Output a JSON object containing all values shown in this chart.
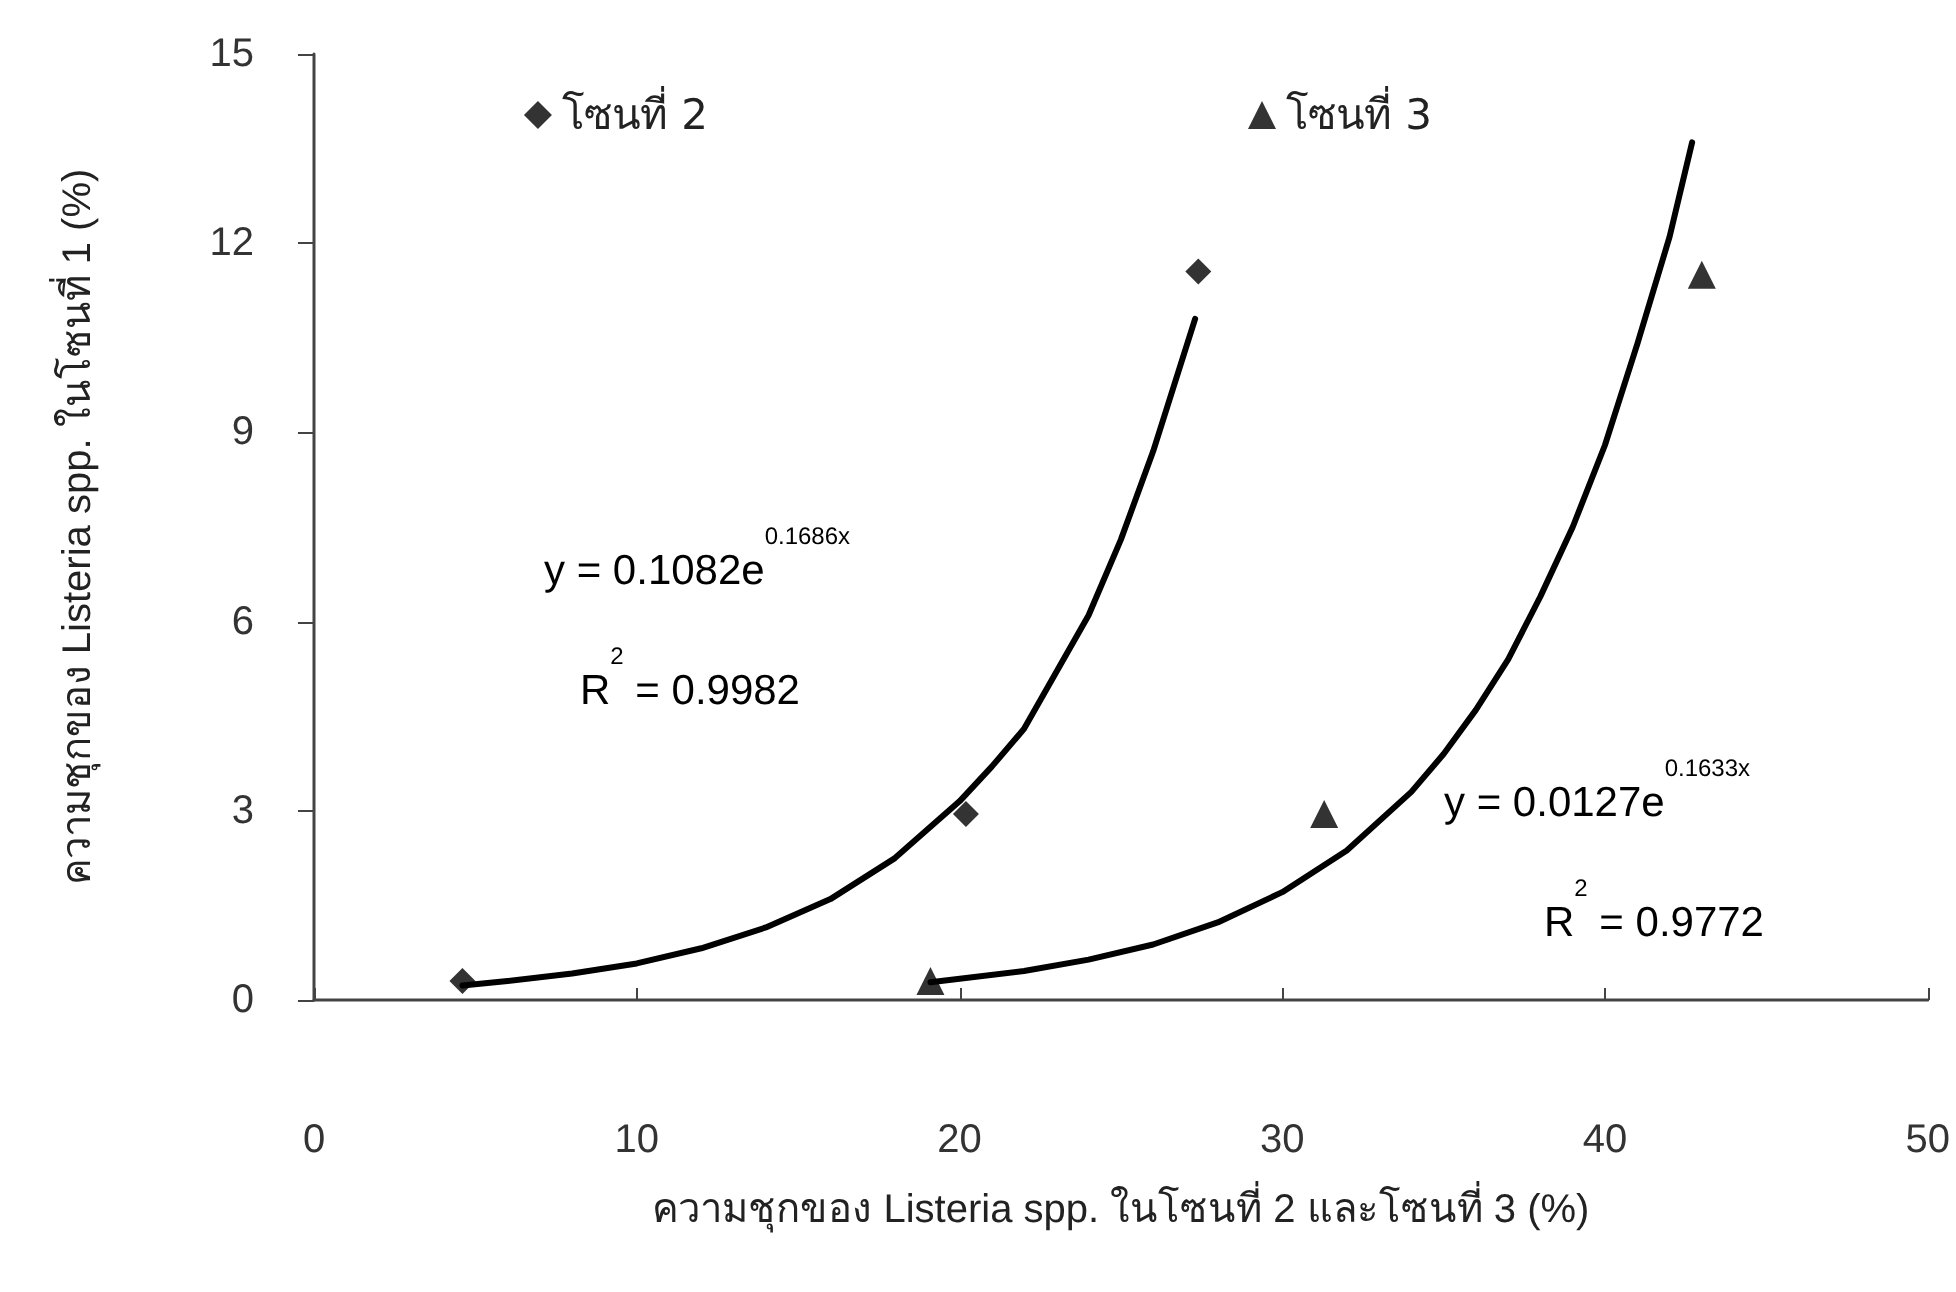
{
  "chart_data": {
    "type": "scatter",
    "xlabel": "ความชุกของ Listeria spp. ในโซนที่ 2 และโซนที่ 3 (%)",
    "ylabel": "ความชุกของ Listeria spp. ในโซนที่ 1 (%)",
    "xlim": [
      0,
      50
    ],
    "xticks": [
      0,
      10,
      20,
      30,
      40,
      50
    ],
    "ylim": [
      0,
      15
    ],
    "yticks": [
      0,
      3,
      6,
      9,
      12,
      15
    ],
    "grid": false,
    "legend": "top",
    "series": [
      {
        "name": "โซนที่ 2",
        "marker": "diamond",
        "color": "#000000",
        "x": [
          4.6,
          20.2,
          27.4
        ],
        "values": [
          0.3,
          2.95,
          11.55
        ]
      },
      {
        "name": "โซนที่ 3",
        "marker": "triangle",
        "color": "#000000",
        "x": [
          19.1,
          31.3,
          43
        ],
        "values": [
          0.3,
          2.95,
          11.5
        ]
      },
      {
        "type": "line",
        "marker": "none",
        "line_style": "solid",
        "color": "#000000",
        "x": [
          4.6,
          6,
          8,
          10,
          12,
          14,
          16,
          18,
          20,
          21,
          22,
          23,
          24,
          25,
          26,
          27.3
        ],
        "values": [
          0.23,
          0.3,
          0.42,
          0.58,
          0.82,
          1.15,
          1.6,
          2.25,
          3.15,
          3.7,
          4.3,
          5.2,
          6.1,
          7.3,
          8.7,
          10.8
        ]
      },
      {
        "type": "line",
        "marker": "none",
        "line_style": "solid",
        "color": "#000000",
        "x": [
          19.1,
          22,
          24,
          26,
          28,
          30,
          32,
          34,
          35,
          36,
          37,
          38,
          39,
          40,
          41,
          42,
          42.7
        ],
        "values": [
          0.28,
          0.46,
          0.64,
          0.88,
          1.23,
          1.71,
          2.37,
          3.3,
          3.9,
          4.6,
          5.4,
          6.4,
          7.5,
          8.8,
          10.4,
          12.1,
          13.6
        ]
      }
    ],
    "annotations": [
      "y = 0.1082e$^{0.1686x}$",
      "R$^{2}$ = 0.9982",
      "y = 0.0127e$^{0.1633x}$",
      "R$^{2}$ = 0.9772"
    ]
  }
}
